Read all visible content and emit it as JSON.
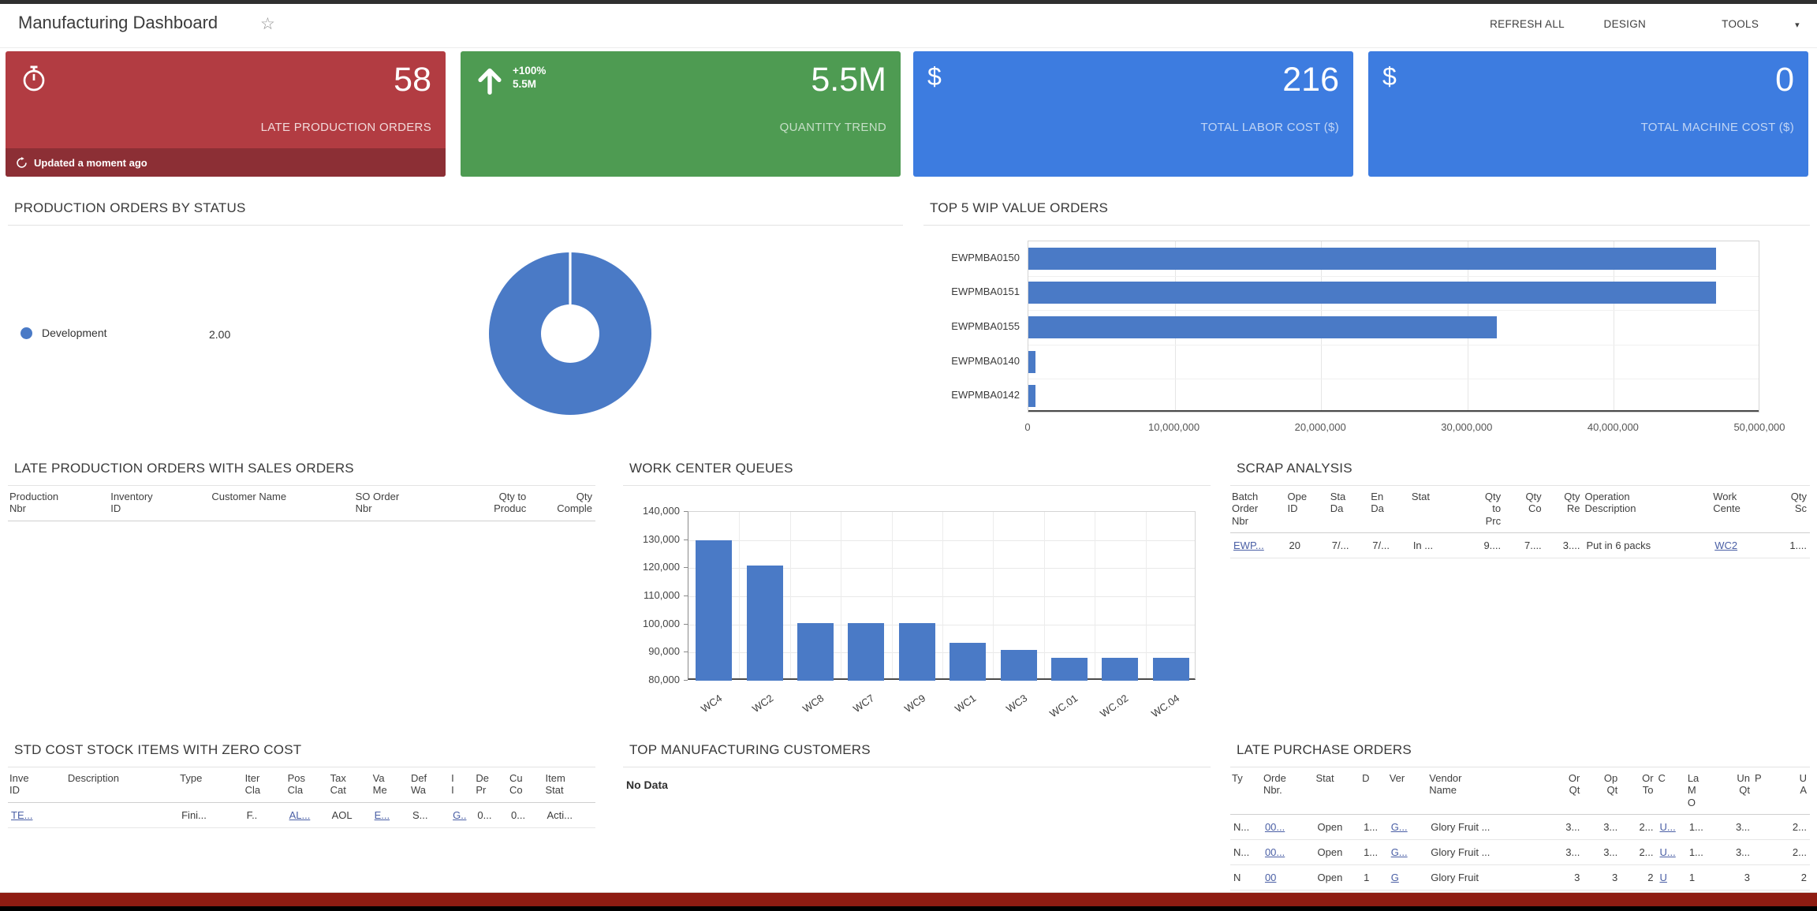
{
  "header": {
    "title": "Manufacturing Dashboard",
    "actions": {
      "refresh_all": "REFRESH ALL",
      "design": "DESIGN",
      "tools": "TOOLS",
      "tools_caret": "▾"
    }
  },
  "kpis": [
    {
      "icon": "stopwatch",
      "value": "58",
      "label": "LATE PRODUCTION ORDERS",
      "bg": "#b23c42",
      "footer_bg": "#8c2f35",
      "footer_text": "Updated a moment ago"
    },
    {
      "icon": "arrow-up",
      "value": "5.5M",
      "label": "QUANTITY TREND",
      "bg": "#4e9b52",
      "delta_percent": "+100%",
      "delta_value": "5.5M"
    },
    {
      "icon": "dollar",
      "icon_char": "$",
      "value": "216",
      "label": "TOTAL LABOR COST ($)",
      "bg": "#3d7ce0"
    },
    {
      "icon": "dollar",
      "icon_char": "$",
      "value": "0",
      "label": "TOTAL MACHINE COST ($)",
      "bg": "#3d7ce0"
    }
  ],
  "panels": {
    "status_title": "PRODUCTION ORDERS BY STATUS",
    "wip_title": "TOP 5 WIP VALUE ORDERS",
    "late_prod_title": "LATE PRODUCTION ORDERS WITH SALES ORDERS",
    "wcq_title": "WORK CENTER QUEUES",
    "scrap_title": "SCRAP ANALYSIS",
    "std_title": "STD COST STOCK ITEMS WITH ZERO COST",
    "customers_title": "TOP MANUFACTURING CUSTOMERS",
    "customers_empty": "No Data",
    "lpo_title": "LATE PURCHASE ORDERS"
  },
  "chart_data": [
    {
      "id": "production-orders-by-status",
      "type": "pie",
      "title": "PRODUCTION ORDERS BY STATUS",
      "series": [
        {
          "label": "Development",
          "value": 2.0,
          "value_label": "2.00",
          "color": "#4a7ac6"
        }
      ],
      "legend_position": "left",
      "donut": true
    },
    {
      "id": "top-5-wip-value-orders",
      "type": "bar",
      "orientation": "horizontal",
      "title": "TOP 5 WIP VALUE ORDERS",
      "categories": [
        "EWPMBA0150",
        "EWPMBA0151",
        "EWPMBA0155",
        "EWPMBA0140",
        "EWPMBA0142"
      ],
      "values": [
        47000000,
        47000000,
        32000000,
        500000,
        500000
      ],
      "xlim": [
        0,
        50000000
      ],
      "xticks": [
        {
          "v": 0,
          "label": "0"
        },
        {
          "v": 10000000,
          "label": "10,000,000"
        },
        {
          "v": 20000000,
          "label": "20,000,000"
        },
        {
          "v": 30000000,
          "label": "30,000,000"
        },
        {
          "v": 40000000,
          "label": "40,000,000"
        },
        {
          "v": 50000000,
          "label": "50,000,000"
        }
      ],
      "bar_color": "#4a7ac6",
      "grid": true
    },
    {
      "id": "work-center-queues",
      "type": "bar",
      "orientation": "vertical",
      "title": "WORK CENTER QUEUES",
      "categories": [
        "WC4",
        "WC2",
        "WC8",
        "WC7",
        "WC9",
        "WC1",
        "WC3",
        "WC.01",
        "WC.02",
        "WC.04"
      ],
      "values": [
        130000,
        121000,
        100500,
        100500,
        100500,
        93500,
        91000,
        88000,
        88000,
        88000
      ],
      "ylim": [
        80000,
        140000
      ],
      "yticks": [
        {
          "v": 80000,
          "label": "80,000"
        },
        {
          "v": 90000,
          "label": "90,000"
        },
        {
          "v": 100000,
          "label": "100,000"
        },
        {
          "v": 110000,
          "label": "110,000"
        },
        {
          "v": 120000,
          "label": "120,000"
        },
        {
          "v": 130000,
          "label": "130,000"
        },
        {
          "v": 140000,
          "label": "140,000"
        }
      ],
      "bar_color": "#4a7ac6",
      "grid": true
    }
  ],
  "tables": {
    "late_production": {
      "columns": [
        {
          "label": "Production\nNbr",
          "w": 95
        },
        {
          "label": "Inventory\nID",
          "w": 95
        },
        {
          "label": "Customer Name",
          "w": 135
        },
        {
          "label": "SO Order\nNbr",
          "w": 95
        },
        {
          "label": "Qty to\nProduc",
          "w": 70,
          "align": "right"
        },
        {
          "label": "Qty\nComple",
          "w": 62,
          "align": "right"
        }
      ],
      "rows": []
    },
    "scrap": {
      "columns": [
        {
          "label": "Batch\nOrder\nNbr",
          "w": 52
        },
        {
          "label": "Ope\nID",
          "w": 40
        },
        {
          "label": "Sta\nDa",
          "w": 38
        },
        {
          "label": "En\nDa",
          "w": 38
        },
        {
          "label": "Stat",
          "w": 46
        },
        {
          "label": "Qty\nto\nPrc",
          "w": 42,
          "align": "right"
        },
        {
          "label": "Qty\nCo",
          "w": 38,
          "align": "right"
        },
        {
          "label": "Qty\nRe",
          "w": 36,
          "align": "right"
        },
        {
          "label": "Operation\nDescription",
          "w": 120
        },
        {
          "label": "Work\nCente",
          "w": 52
        },
        {
          "label": "Qty\nSc",
          "w": 40,
          "align": "right"
        }
      ],
      "rows": [
        [
          {
            "t": "EWP...",
            "link": true
          },
          "20",
          "7/...",
          "7/...",
          "In ...",
          "9....",
          "7....",
          "3....",
          "Put in 6 packs",
          {
            "t": "WC2",
            "link": true
          },
          "1...."
        ]
      ]
    },
    "std_cost": {
      "columns": [
        {
          "label": "Inve\nID",
          "w": 52
        },
        {
          "label": "Description",
          "w": 100
        },
        {
          "label": "Type",
          "w": 58
        },
        {
          "label": "Iter\nCla",
          "w": 38
        },
        {
          "label": "Pos\nCla",
          "w": 38
        },
        {
          "label": "Tax\nCat",
          "w": 38
        },
        {
          "label": "Va\nMe",
          "w": 34
        },
        {
          "label": "Def\nWa",
          "w": 36
        },
        {
          "label": "I\nI",
          "w": 22
        },
        {
          "label": "De\nPr",
          "w": 30
        },
        {
          "label": "Cu\nCo",
          "w": 32
        },
        {
          "label": "Item\nStat",
          "w": 46
        }
      ],
      "rows": [
        [
          {
            "t": "TE...",
            "link": true
          },
          "",
          "Fini...",
          "F..",
          {
            "t": "AL...",
            "link": true
          },
          "AOL",
          {
            "t": "E...",
            "link": true
          },
          "S...",
          {
            "t": "G..",
            "link": true
          },
          "0...",
          "0...",
          "Acti..."
        ]
      ]
    },
    "late_po": {
      "columns": [
        {
          "label": "Ty",
          "w": 30
        },
        {
          "label": "Orde\nNbr.",
          "w": 50
        },
        {
          "label": "Stat",
          "w": 44
        },
        {
          "label": "D",
          "w": 26
        },
        {
          "label": "Ver",
          "w": 38
        },
        {
          "label": "Vendor\nName",
          "w": 112
        },
        {
          "label": "Or\nQt",
          "w": 36,
          "align": "right"
        },
        {
          "label": "Op\nQt",
          "w": 36,
          "align": "right"
        },
        {
          "label": "Or\nTo",
          "w": 34,
          "align": "right"
        },
        {
          "label": "C",
          "w": 28
        },
        {
          "label": "La\nM\nO",
          "w": 30
        },
        {
          "label": "Un\nQt",
          "w": 34,
          "align": "right"
        },
        {
          "label": "P",
          "w": 20
        },
        {
          "label": "U\nA",
          "w": 34,
          "align": "right"
        }
      ],
      "rows": [
        [
          "N...",
          {
            "t": "00...",
            "link": true
          },
          "Open",
          "1...",
          {
            "t": "G...",
            "link": true
          },
          "Glory Fruit ...",
          "3...",
          "3...",
          "2...",
          {
            "t": "U...",
            "link": true
          },
          "1...",
          "3...",
          "",
          "2..."
        ],
        [
          "N...",
          {
            "t": "00...",
            "link": true
          },
          "Open",
          "1...",
          {
            "t": "G...",
            "link": true
          },
          "Glory Fruit ...",
          "3...",
          "3...",
          "2...",
          {
            "t": "U...",
            "link": true
          },
          "1...",
          "3...",
          "",
          "2..."
        ],
        [
          "N",
          {
            "t": "00",
            "link": true
          },
          "Open",
          "1",
          {
            "t": "G",
            "link": true
          },
          "Glory Fruit",
          "3",
          "3",
          "2",
          {
            "t": "U",
            "link": true
          },
          "1",
          "3",
          "",
          "2"
        ]
      ]
    }
  }
}
